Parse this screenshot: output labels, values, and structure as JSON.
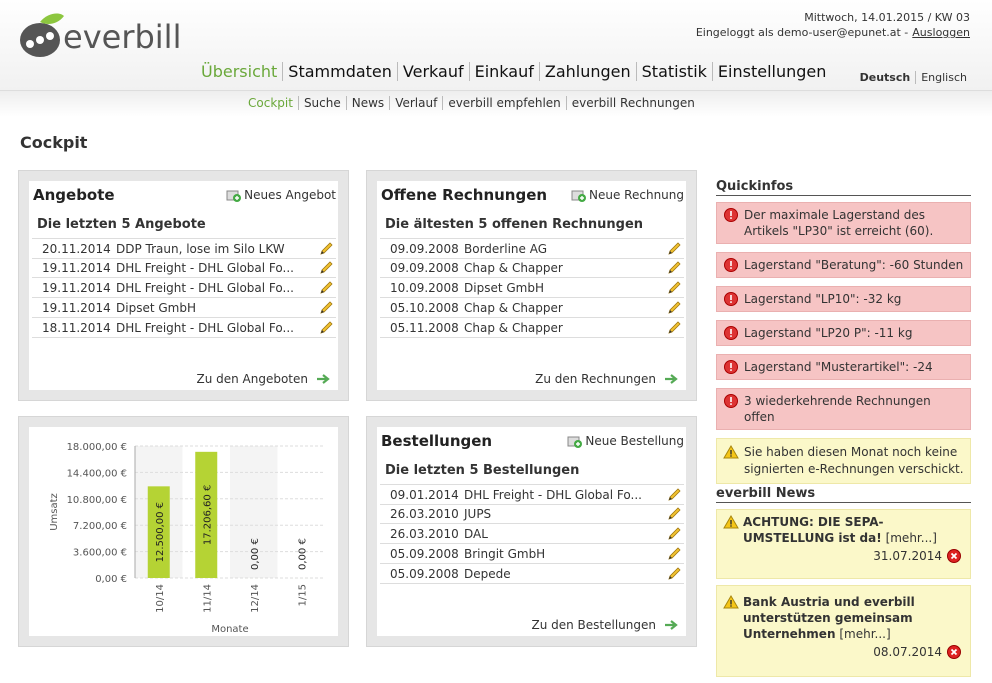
{
  "header": {
    "logo": "everbill",
    "date": "Mittwoch, 14.01.2015 / KW 03",
    "login": "Eingeloggt als demo-user@epunet.at -",
    "logout": "Ausloggen",
    "languages": [
      "Deutsch",
      "Englisch"
    ]
  },
  "nav": [
    "Übersicht",
    "Stammdaten",
    "Verkauf",
    "Einkauf",
    "Zahlungen",
    "Statistik",
    "Einstellungen"
  ],
  "subnav": [
    "Cockpit",
    "Suche",
    "News",
    "Verlauf",
    "everbill empfehlen",
    "everbill Rechnungen"
  ],
  "page_title": "Cockpit",
  "panels": [
    {
      "title": "Angebote",
      "action": "Neues Angebot",
      "subtitle": "Die letzten 5 Angebote",
      "footer": "Zu den Angeboten",
      "rows": [
        {
          "date": "20.11.2014",
          "text": "DDP Traun, lose im Silo LKW"
        },
        {
          "date": "19.11.2014",
          "text": "DHL Freight - DHL Global Fo..."
        },
        {
          "date": "19.11.2014",
          "text": "DHL Freight - DHL Global Fo..."
        },
        {
          "date": "19.11.2014",
          "text": "Dipset GmbH"
        },
        {
          "date": "18.11.2014",
          "text": "DHL Freight - DHL Global Fo..."
        }
      ]
    },
    {
      "title": "Offene Rechnungen",
      "action": "Neue Rechnung",
      "subtitle": "Die ältesten 5 offenen Rechnungen",
      "footer": "Zu den Rechnungen",
      "rows": [
        {
          "date": "09.09.2008",
          "text": "Borderline AG"
        },
        {
          "date": "09.09.2008",
          "text": "Chap & Chapper"
        },
        {
          "date": "10.09.2008",
          "text": "Dipset GmbH"
        },
        {
          "date": "05.10.2008",
          "text": "Chap & Chapper"
        },
        {
          "date": "05.11.2008",
          "text": "Chap & Chapper"
        }
      ]
    },
    {
      "title": "Bestellungen",
      "action": "Neue Bestellung",
      "subtitle": "Die letzten 5 Bestellungen",
      "footer": "Zu den Bestellungen",
      "rows": [
        {
          "date": "09.01.2014",
          "text": "DHL Freight - DHL Global Fo..."
        },
        {
          "date": "26.03.2010",
          "text": "JUPS"
        },
        {
          "date": "26.03.2010",
          "text": "DAL"
        },
        {
          "date": "05.09.2008",
          "text": "Bringit GmbH"
        },
        {
          "date": "05.09.2008",
          "text": "Depede"
        }
      ]
    }
  ],
  "chart_data": {
    "type": "bar",
    "xlabel": "Monate",
    "ylabel": "Umsatz",
    "color": "#b5d334",
    "categories": [
      "10/14",
      "11/14",
      "12/14",
      "1/15"
    ],
    "values": [
      12500,
      17206.6,
      0,
      0
    ],
    "value_labels": [
      "12.500,00 €",
      "17.206,60 €",
      "0,00 €",
      "0,00 €"
    ],
    "ylim": [
      0,
      18000
    ],
    "yticks": [
      {
        "value": 0,
        "label": "0,00 €"
      },
      {
        "value": 3600,
        "label": "3.600,00 €"
      },
      {
        "value": 7200,
        "label": "7.200,00 €"
      },
      {
        "value": 10800,
        "label": "10.800,00 €"
      },
      {
        "value": 14400,
        "label": "14.400,00 €"
      },
      {
        "value": 18000,
        "label": "18.000,00 €"
      }
    ],
    "grid": true
  },
  "quickinfos": {
    "title": "Quickinfos",
    "errors": [
      "Der maximale Lagerstand des Artikels \"LP30\" ist erreicht (60).",
      "Lagerstand \"Beratung\": -60 Stunden",
      "Lagerstand \"LP10\": -32 kg",
      "Lagerstand \"LP20 P\": -11 kg",
      "Lagerstand \"Musterartikel\": -24",
      "3 wiederkehrende Rechnungen offen"
    ],
    "warning": "Sie haben diesen Monat noch keine signierten e-Rechnungen verschickt."
  },
  "news": {
    "title": "everbill News",
    "items": [
      {
        "title": "ACHTUNG: DIE SEPA-UMSTELLUNG ist da!",
        "more": "[mehr...]",
        "date": "31.07.2014"
      },
      {
        "title": "Bank Austria und everbill unterstützen gemeinsam Unternehmen",
        "more": "[mehr...]",
        "date": "08.07.2014"
      }
    ]
  }
}
